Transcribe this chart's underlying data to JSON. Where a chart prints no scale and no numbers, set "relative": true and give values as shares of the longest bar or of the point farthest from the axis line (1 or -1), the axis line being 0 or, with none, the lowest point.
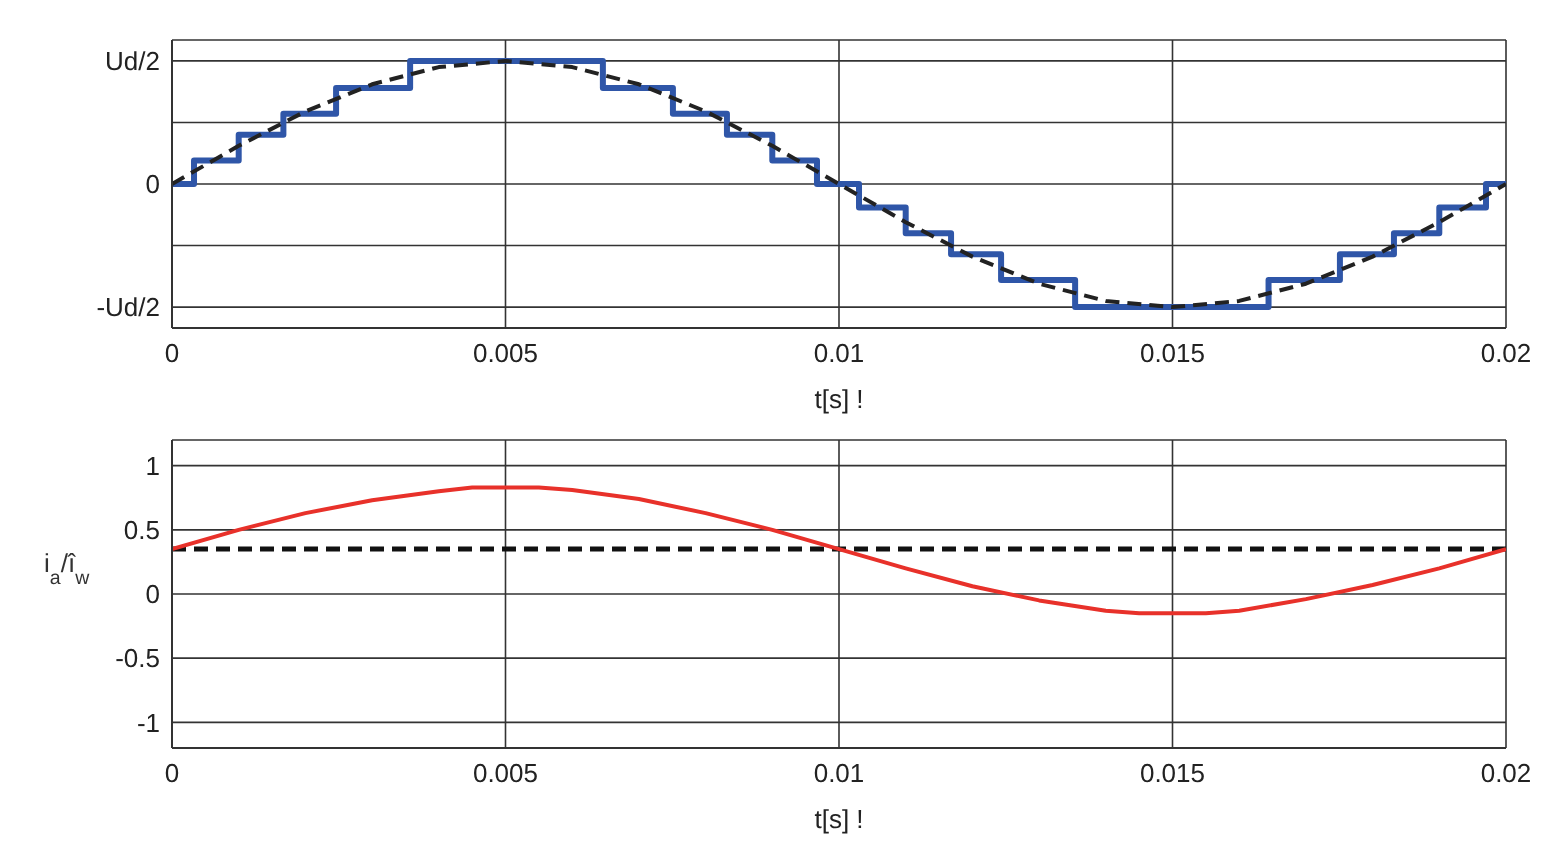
{
  "chart_data": [
    {
      "type": "line",
      "xlabel": "t[s] !",
      "xlim": [
        0,
        0.02
      ],
      "xticks": [
        0,
        0.005,
        0.01,
        0.015,
        0.02
      ],
      "relative": true,
      "annotations": [
        "Ud/2",
        "0",
        "-Ud/2"
      ],
      "grid": true,
      "series": [
        {
          "type": "step",
          "color": "#2f56a8",
          "line_style": "solid",
          "x": [
            0,
            0.00033,
            0.001,
            0.00167,
            0.00246,
            0.00357,
            0.00646,
            0.00751,
            0.00832,
            0.009,
            0.00967,
            0.0103,
            0.011,
            0.01168,
            0.01243,
            0.01354,
            0.01644,
            0.01751,
            0.01832,
            0.019,
            0.0197,
            0.02
          ],
          "values": [
            0,
            0.19,
            0.4,
            0.57,
            0.78,
            1,
            0.78,
            0.57,
            0.4,
            0.19,
            0,
            -0.19,
            -0.4,
            -0.57,
            -0.78,
            -1,
            -0.78,
            -0.57,
            -0.4,
            -0.19,
            0,
            0
          ]
        },
        {
          "type": "line",
          "color": "#222222",
          "line_style": "dashed",
          "x": [
            0,
            0.001,
            0.002,
            0.003,
            0.004,
            0.005,
            0.006,
            0.007,
            0.008,
            0.009,
            0.01,
            0.011,
            0.012,
            0.013,
            0.014,
            0.015,
            0.016,
            0.017,
            0.018,
            0.019,
            0.02
          ],
          "values": [
            0,
            0.31,
            0.59,
            0.81,
            0.95,
            1,
            0.95,
            0.81,
            0.59,
            0.31,
            0,
            -0.31,
            -0.59,
            -0.81,
            -0.95,
            -1,
            -0.95,
            -0.81,
            -0.59,
            -0.31,
            0
          ]
        }
      ]
    },
    {
      "type": "line",
      "xlabel": "t[s] !",
      "ylabel": "i$_{a}$/î$_{w}$",
      "xlim": [
        0,
        0.02
      ],
      "xticks": [
        0,
        0.005,
        0.01,
        0.015,
        0.02
      ],
      "ylim": [
        -1.2,
        1.2
      ],
      "yticks": [
        -1,
        -0.5,
        0,
        0.5,
        1
      ],
      "grid": true,
      "ref_lines": [
        {
          "axis": "y",
          "value": 0.35,
          "color": "#111111",
          "line_style": "dashed"
        }
      ],
      "series": [
        {
          "type": "line",
          "color": "#e8312a",
          "line_style": "solid",
          "x": [
            0,
            0.001,
            0.002,
            0.003,
            0.004,
            0.0045,
            0.0055,
            0.006,
            0.007,
            0.008,
            0.009,
            0.01,
            0.011,
            0.012,
            0.013,
            0.014,
            0.0145,
            0.0155,
            0.016,
            0.017,
            0.018,
            0.019,
            0.02
          ],
          "values": [
            0.35,
            0.5,
            0.63,
            0.73,
            0.8,
            0.83,
            0.83,
            0.81,
            0.74,
            0.63,
            0.5,
            0.35,
            0.2,
            0.06,
            -0.05,
            -0.13,
            -0.15,
            -0.15,
            -0.13,
            -0.04,
            0.07,
            0.2,
            0.35
          ]
        }
      ]
    }
  ]
}
